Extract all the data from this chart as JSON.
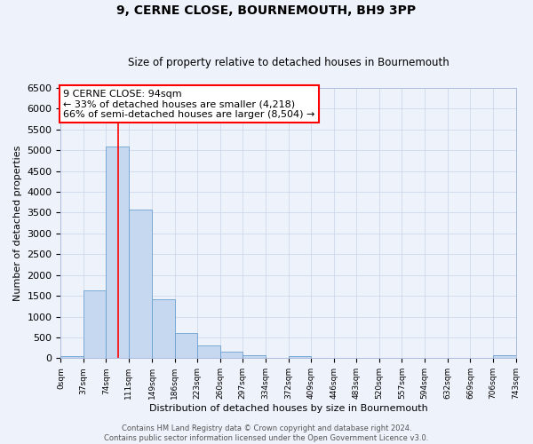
{
  "title": "9, CERNE CLOSE, BOURNEMOUTH, BH9 3PP",
  "subtitle": "Size of property relative to detached houses in Bournemouth",
  "xlabel": "Distribution of detached houses by size in Bournemouth",
  "ylabel": "Number of detached properties",
  "bin_edges": [
    0,
    37,
    74,
    111,
    149,
    186,
    223,
    260,
    297,
    334,
    372,
    409,
    446,
    483,
    520,
    557,
    594,
    632,
    669,
    706,
    743
  ],
  "bar_heights": [
    50,
    1620,
    5080,
    3580,
    1420,
    610,
    300,
    150,
    70,
    0,
    50,
    0,
    0,
    0,
    0,
    0,
    0,
    0,
    0,
    70
  ],
  "bar_color": "#c5d8f0",
  "bar_edgecolor": "#6aa0d0",
  "vline_x": 94,
  "vline_color": "red",
  "ylim": [
    0,
    6500
  ],
  "yticks": [
    0,
    500,
    1000,
    1500,
    2000,
    2500,
    3000,
    3500,
    4000,
    4500,
    5000,
    5500,
    6000,
    6500
  ],
  "annotation_title": "9 CERNE CLOSE: 94sqm",
  "annotation_line1": "← 33% of detached houses are smaller (4,218)",
  "annotation_line2": "66% of semi-detached houses are larger (8,504) →",
  "annotation_box_color": "white",
  "annotation_box_edgecolor": "red",
  "footer1": "Contains HM Land Registry data © Crown copyright and database right 2024.",
  "footer2": "Contains public sector information licensed under the Open Government Licence v3.0.",
  "background_color": "#eef2fb",
  "grid_color": "#c8d4e8",
  "title_fontsize": 10,
  "subtitle_fontsize": 8.5,
  "xlabel_fontsize": 8,
  "ylabel_fontsize": 8,
  "xtick_fontsize": 6.5,
  "ytick_fontsize": 8,
  "annotation_fontsize": 8,
  "footer_fontsize": 6
}
